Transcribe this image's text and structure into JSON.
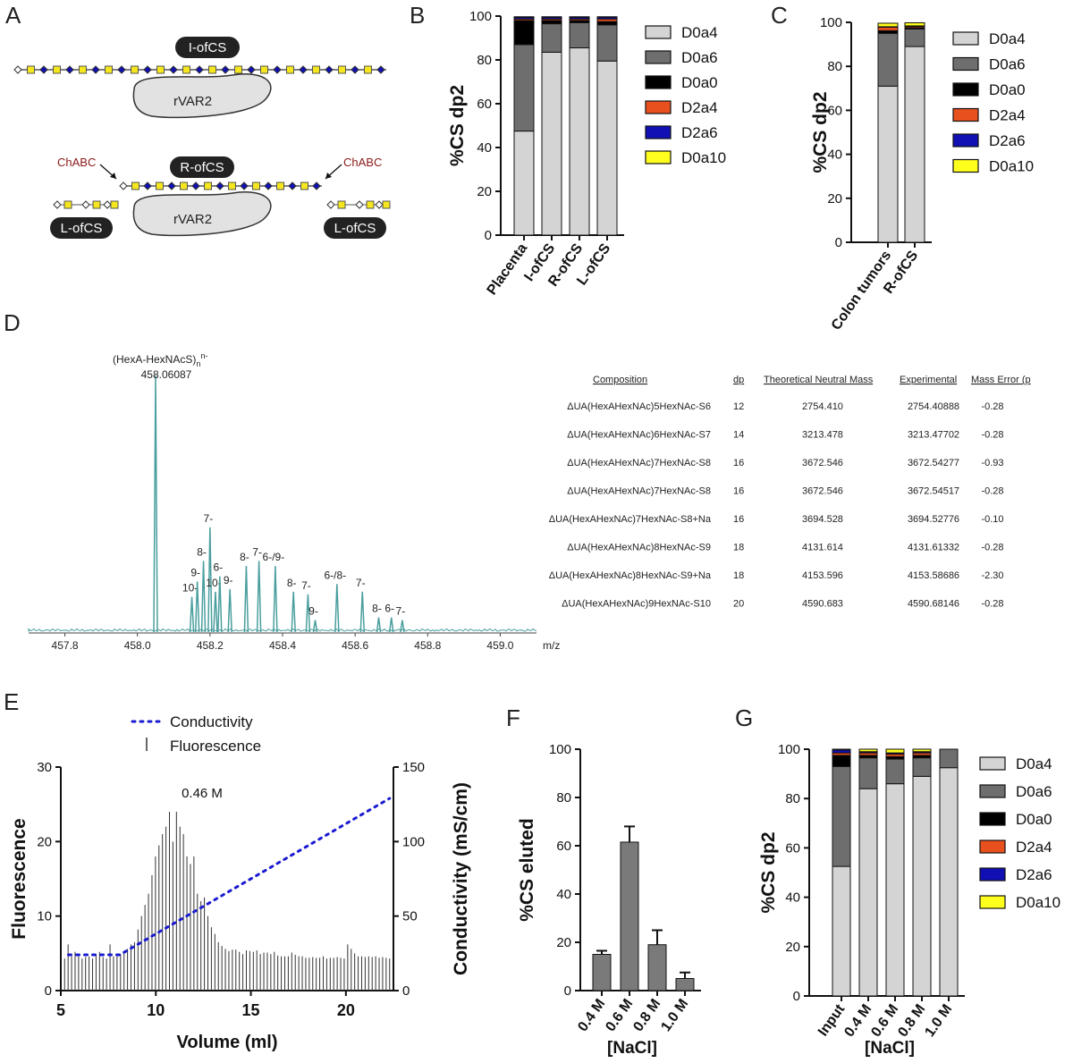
{
  "panels": {
    "A": {
      "letter": "A",
      "labels": {
        "i_ofcs": "I-ofCS",
        "rvar2_top": "rVAR2",
        "r_ofcs": "R-ofCS",
        "rvar2_bottom": "rVAR2",
        "chabc_left": "ChABC",
        "chabc_right": "ChABC",
        "l_ofcs_left": "L-ofCS",
        "l_ofcs_right": "L-ofCS"
      }
    },
    "B": {
      "letter": "B"
    },
    "C": {
      "letter": "C"
    },
    "D": {
      "letter": "D"
    },
    "E": {
      "letter": "E"
    },
    "F": {
      "letter": "F"
    },
    "G": {
      "letter": "G"
    }
  },
  "colors": {
    "D0a4": "#d4d4d4",
    "D0a6": "#6e6e6e",
    "D0a0": "#000000",
    "D2a4": "#e8501e",
    "D2a6": "#1010b4",
    "D0a10": "#ffff1e",
    "gray_bar": "#7a7a7a",
    "spectrum": "#4a9e9e",
    "conductivity": "#1a1ad0"
  },
  "chart_data": [
    {
      "id": "B",
      "type": "bar",
      "stacked": true,
      "categories": [
        "Placenta",
        "I-ofCS",
        "R-ofCS",
        "L-ofCS"
      ],
      "ylabel": "%CS dp2",
      "ylim": [
        0,
        100
      ],
      "yticks": [
        0,
        20,
        40,
        60,
        80,
        100
      ],
      "legend_position": "right",
      "series": [
        {
          "name": "D0a4",
          "values": [
            47.5,
            83.5,
            85.5,
            79.5
          ]
        },
        {
          "name": "D0a6",
          "values": [
            39.5,
            13,
            11.5,
            16.5
          ]
        },
        {
          "name": "D0a0",
          "values": [
            11,
            1.5,
            1,
            1.5
          ]
        },
        {
          "name": "D2a4",
          "values": [
            0.7,
            0.7,
            0.7,
            1.2
          ]
        },
        {
          "name": "D2a6",
          "values": [
            0.8,
            0.8,
            0.8,
            0.8
          ]
        },
        {
          "name": "D0a10",
          "values": [
            0.2,
            0.2,
            0.2,
            0.2
          ]
        }
      ]
    },
    {
      "id": "C",
      "type": "bar",
      "stacked": true,
      "categories": [
        "Colon tumors",
        "R-ofCS"
      ],
      "ylabel": "%CS dp2",
      "ylim": [
        0,
        100
      ],
      "yticks": [
        0,
        20,
        40,
        60,
        80,
        100
      ],
      "legend_position": "right",
      "series": [
        {
          "name": "D0a4",
          "values": [
            71,
            89
          ]
        },
        {
          "name": "D0a6",
          "values": [
            24,
            8
          ]
        },
        {
          "name": "D0a0",
          "values": [
            1.2,
            0.6
          ]
        },
        {
          "name": "D2a4",
          "values": [
            1.6,
            0.6
          ]
        },
        {
          "name": "D2a6",
          "values": [
            0.2,
            0.2
          ]
        },
        {
          "name": "D0a10",
          "values": [
            1.6,
            1.4
          ]
        }
      ]
    },
    {
      "id": "D",
      "type": "line",
      "x_unit": "m/z",
      "xlim": [
        457.7,
        459.1
      ],
      "xticks": [
        457.8,
        458.0,
        458.2,
        458.4,
        458.6,
        458.8,
        459.0
      ],
      "main_peak": {
        "label": "(HexA-HexNAcS)",
        "sub": "n",
        "sup": "n-",
        "mz": "458.06087"
      },
      "peaks": [
        {
          "x": 458.05,
          "h": 100,
          "label": ""
        },
        {
          "x": 458.15,
          "h": 14,
          "label": "10-"
        },
        {
          "x": 458.165,
          "h": 20,
          "label": "9-"
        },
        {
          "x": 458.182,
          "h": 28,
          "label": "8-"
        },
        {
          "x": 458.2,
          "h": 41,
          "label": "7-"
        },
        {
          "x": 458.215,
          "h": 16,
          "label": "10-"
        },
        {
          "x": 458.227,
          "h": 22,
          "label": "6-"
        },
        {
          "x": 458.255,
          "h": 17,
          "label": "9-"
        },
        {
          "x": 458.3,
          "h": 26,
          "label": "8-"
        },
        {
          "x": 458.335,
          "h": 28,
          "label": "7-"
        },
        {
          "x": 458.38,
          "h": 26,
          "label": "6-/9-"
        },
        {
          "x": 458.43,
          "h": 16,
          "label": "8-"
        },
        {
          "x": 458.47,
          "h": 15,
          "label": "7-"
        },
        {
          "x": 458.49,
          "h": 5,
          "label": "9-"
        },
        {
          "x": 458.55,
          "h": 19,
          "label": "6-/8-"
        },
        {
          "x": 458.62,
          "h": 16,
          "label": "7-"
        },
        {
          "x": 458.665,
          "h": 6,
          "label": "8-"
        },
        {
          "x": 458.7,
          "h": 6,
          "label": "6-"
        },
        {
          "x": 458.73,
          "h": 5,
          "label": "7-"
        }
      ],
      "table": {
        "headers": [
          "Composition",
          "dp",
          "Theoretical Neutral Mass",
          "Experimental",
          "Mass Error (p"
        ],
        "rows": [
          [
            "ΔUA(HexAHexNAc)5HexNAc-S6",
            "12",
            "2754.410",
            "2754.40888",
            "-0.28"
          ],
          [
            "ΔUA(HexAHexNAc)6HexNAc-S7",
            "14",
            "3213.478",
            "3213.47702",
            "-0.28"
          ],
          [
            "ΔUA(HexAHexNAc)7HexNAc-S8",
            "16",
            "3672.546",
            "3672.54277",
            "-0.93"
          ],
          [
            "ΔUA(HexAHexNAc)7HexNAc-S8",
            "16",
            "3672.546",
            "3672.54517",
            "-0.28"
          ],
          [
            "ΔUA(HexAHexNAc)7HexNAc-S8+Na",
            "16",
            "3694.528",
            "3694.52776",
            "-0.10"
          ],
          [
            "ΔUA(HexAHexNAc)8HexNAc-S9",
            "18",
            "4131.614",
            "4131.61332",
            "-0.28"
          ],
          [
            "ΔUA(HexAHexNAc)8HexNAc-S9+Na",
            "18",
            "4153.596",
            "4153.58686",
            "-2.30"
          ],
          [
            "ΔUA(HexAHexNAc)9HexNAc-S10",
            "20",
            "4590.683",
            "4590.68146",
            "-0.28"
          ]
        ]
      }
    },
    {
      "id": "E",
      "type": "bar",
      "xlabel": "Volume (ml)",
      "ylabel": "Fluorescence",
      "y2label": "Conductivity (mS/cm)",
      "xlim": [
        5,
        22.5
      ],
      "ylim": [
        0,
        30
      ],
      "y2lim": [
        0,
        150
      ],
      "xticks": [
        5,
        10,
        15,
        20
      ],
      "yticks": [
        0,
        10,
        20,
        30
      ],
      "y2ticks": [
        0,
        50,
        100,
        150
      ],
      "annotation": "0.46 M",
      "legend": {
        "conductivity": "Conductivity",
        "fluorescence": "Fluorescence"
      },
      "conductivity": {
        "x": [
          5.4,
          8.1,
          22.3
        ],
        "y": [
          24,
          24,
          129
        ]
      },
      "fluorescence": [
        4.3,
        6.2,
        4.6,
        5.2,
        4.6,
        4.3,
        4.5,
        4.6,
        4.3,
        4.9,
        5.2,
        4.5,
        4.3,
        6.2,
        4.6,
        4.6,
        4.9,
        5.2,
        5.6,
        6.2,
        6.5,
        8.2,
        10,
        11.5,
        13,
        15.5,
        18,
        19.5,
        21,
        22,
        24,
        20,
        24,
        22,
        21,
        18,
        17,
        18,
        13,
        12,
        12.5,
        10,
        8.5,
        7.6,
        6.5,
        6,
        5.6,
        5.3,
        5.5,
        5.5,
        5.2,
        4.9,
        5.4,
        5.3,
        5.2,
        5.4,
        4.9,
        5.1,
        5.1,
        4.9,
        5.2,
        4.7,
        4.6,
        4.6,
        4.6,
        5.1,
        4.8,
        4.6,
        4.6,
        4.4,
        4.4,
        4.5,
        4.4,
        4.4,
        4.6,
        4.3,
        4.4,
        4.4,
        4.5,
        4.4,
        4.3,
        6.2,
        5.6,
        5.0,
        4.6,
        4.6,
        4.5,
        4.6,
        4.5,
        4.6,
        4.4,
        4.5,
        4.4,
        4.3
      ]
    },
    {
      "id": "F",
      "type": "bar",
      "categories": [
        "0.4 M",
        "0.6 M",
        "0.8 M",
        "1.0 M"
      ],
      "values": [
        15,
        61.5,
        19,
        5
      ],
      "errors": [
        1.5,
        6.5,
        6,
        2.5
      ],
      "xlabel": "[NaCl]",
      "ylabel": "%CS eluted",
      "ylim": [
        0,
        100
      ],
      "yticks": [
        0,
        20,
        40,
        60,
        80,
        100
      ]
    },
    {
      "id": "G",
      "type": "bar",
      "stacked": true,
      "categories": [
        "Input",
        "0.4 M",
        "0.6 M",
        "0.8 M",
        "1.0 M"
      ],
      "xlabel": "[NaCl]",
      "ylabel": "%CS dp2",
      "ylim": [
        0,
        100
      ],
      "yticks": [
        0,
        20,
        40,
        60,
        80,
        100
      ],
      "legend_position": "right",
      "series": [
        {
          "name": "D0a4",
          "values": [
            52.5,
            84,
            86,
            89,
            92.5
          ]
        },
        {
          "name": "D0a6",
          "values": [
            40.5,
            12.5,
            10,
            7.5,
            7.5
          ]
        },
        {
          "name": "D0a0",
          "values": [
            4.5,
            1,
            1,
            1,
            0
          ]
        },
        {
          "name": "D2a4",
          "values": [
            1,
            1,
            1,
            1,
            0
          ]
        },
        {
          "name": "D2a6",
          "values": [
            1.2,
            0.5,
            0.5,
            0.5,
            0
          ]
        },
        {
          "name": "D0a10",
          "values": [
            0.3,
            1,
            1.5,
            1,
            0
          ]
        }
      ]
    }
  ]
}
